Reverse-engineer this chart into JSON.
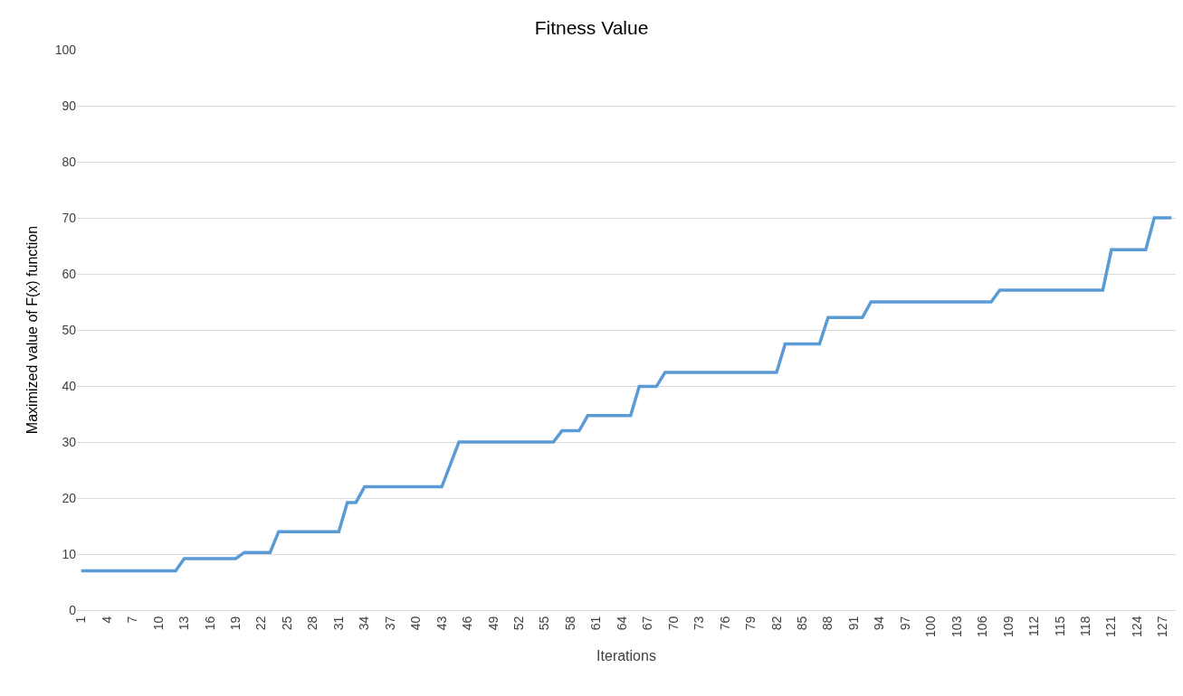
{
  "chart_data": {
    "type": "line",
    "title": "Fitness Value",
    "xlabel": "Iterations",
    "ylabel": "Maximized value of F(x) function",
    "categories": [
      "1",
      null,
      null,
      "4",
      null,
      null,
      "7",
      null,
      null,
      "10",
      null,
      null,
      "13",
      null,
      null,
      "16",
      null,
      null,
      "19",
      null,
      null,
      "22",
      null,
      null,
      "25",
      null,
      null,
      "28",
      null,
      null,
      "31",
      null,
      null,
      "34",
      null,
      null,
      "37",
      null,
      null,
      "40",
      null,
      null,
      "43",
      null,
      null,
      "46",
      null,
      null,
      "49",
      null,
      null,
      "52",
      null,
      null,
      "55",
      null,
      null,
      "58",
      null,
      null,
      "61",
      null,
      null,
      "64",
      null,
      null,
      "67",
      null,
      null,
      "70",
      null,
      null,
      "73",
      null,
      null,
      "76",
      null,
      null,
      "79",
      null,
      null,
      "82",
      null,
      null,
      "85",
      null,
      null,
      "88",
      null,
      null,
      "91",
      null,
      null,
      "94",
      null,
      null,
      "97",
      null,
      null,
      "100",
      null,
      null,
      "103",
      null,
      null,
      "106",
      null,
      null,
      "109",
      null,
      null,
      "112",
      null,
      null,
      "115",
      null,
      null,
      "118",
      null,
      null,
      "121",
      null,
      null,
      "124",
      null,
      null,
      "127",
      null
    ],
    "series": [
      {
        "color": "#5b9bd5",
        "values": [
          7,
          7,
          7,
          7,
          7,
          7,
          7,
          7,
          7,
          7,
          7,
          7,
          9.2,
          9.2,
          9.2,
          9.2,
          9.2,
          9.2,
          9.2,
          10.3,
          10.3,
          10.3,
          10.3,
          14,
          14,
          14,
          14,
          14,
          14,
          14,
          14,
          19.2,
          19.2,
          22,
          22,
          22,
          22,
          22,
          22,
          22,
          22,
          22,
          22,
          26,
          30,
          30,
          30,
          30,
          30,
          30,
          30,
          30,
          30,
          30,
          30,
          30,
          32,
          32,
          32,
          34.7,
          34.7,
          34.7,
          34.7,
          34.7,
          34.7,
          39.9,
          39.9,
          39.9,
          42.4,
          42.4,
          42.4,
          42.4,
          42.4,
          42.4,
          42.4,
          42.4,
          42.4,
          42.4,
          42.4,
          42.4,
          42.4,
          42.4,
          47.5,
          47.5,
          47.5,
          47.5,
          47.5,
          52.2,
          52.2,
          52.2,
          52.2,
          52.2,
          55,
          55,
          55,
          55,
          55,
          55,
          55,
          55,
          55,
          55,
          55,
          55,
          55,
          55,
          55,
          57.1,
          57.1,
          57.1,
          57.1,
          57.1,
          57.1,
          57.1,
          57.1,
          57.1,
          57.1,
          57.1,
          57.1,
          57.1,
          64.3,
          64.3,
          64.3,
          64.3,
          64.3,
          70,
          70,
          70
        ]
      }
    ],
    "ylim": [
      0,
      100
    ],
    "yticks": [
      0,
      10,
      20,
      30,
      40,
      50,
      60,
      70,
      80,
      90,
      100
    ],
    "grid": "y",
    "marker": "none",
    "line_style": "solid"
  }
}
